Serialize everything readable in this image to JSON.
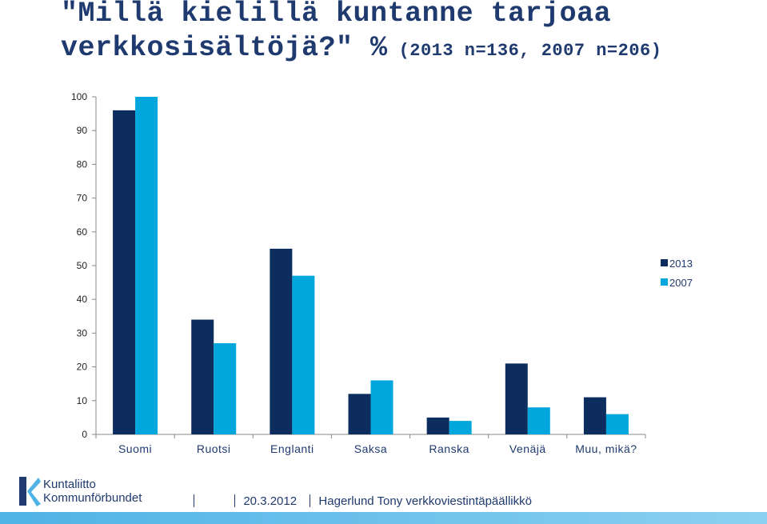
{
  "title": {
    "line1": "\"Millä kielillä kuntanne tarjoaa",
    "line2": "verkkosisältöjä?\" %",
    "subtitle": "(2013 n=136, 2007 n=206)"
  },
  "chart_data": {
    "type": "bar",
    "categories": [
      "Suomi",
      "Ruotsi",
      "Englanti",
      "Saksa",
      "Ranska",
      "Venäjä",
      "Muu, mikä?"
    ],
    "series": [
      {
        "name": "2013",
        "values": [
          96,
          34,
          55,
          12,
          5,
          21,
          11
        ],
        "color": "#0d2d5e"
      },
      {
        "name": "2007",
        "values": [
          100,
          27,
          47,
          16,
          4,
          8,
          6
        ],
        "color": "#00a6dc"
      }
    ],
    "ylim": [
      0,
      100
    ],
    "yticks": [
      "0",
      "10",
      "20",
      "30",
      "40",
      "50",
      "60",
      "70",
      "80",
      "90",
      "100"
    ],
    "grid": false,
    "legend_position": "right"
  },
  "logo": {
    "line1": "Kuntaliitto",
    "line2": "Kommunförbundet"
  },
  "footer": {
    "date": "20.3.2012",
    "author": "Hagerlund Tony verkkoviestintäpäällikkö"
  },
  "colors": {
    "title": "#1f3a6e",
    "footer_bar": "#4fb3e6"
  }
}
